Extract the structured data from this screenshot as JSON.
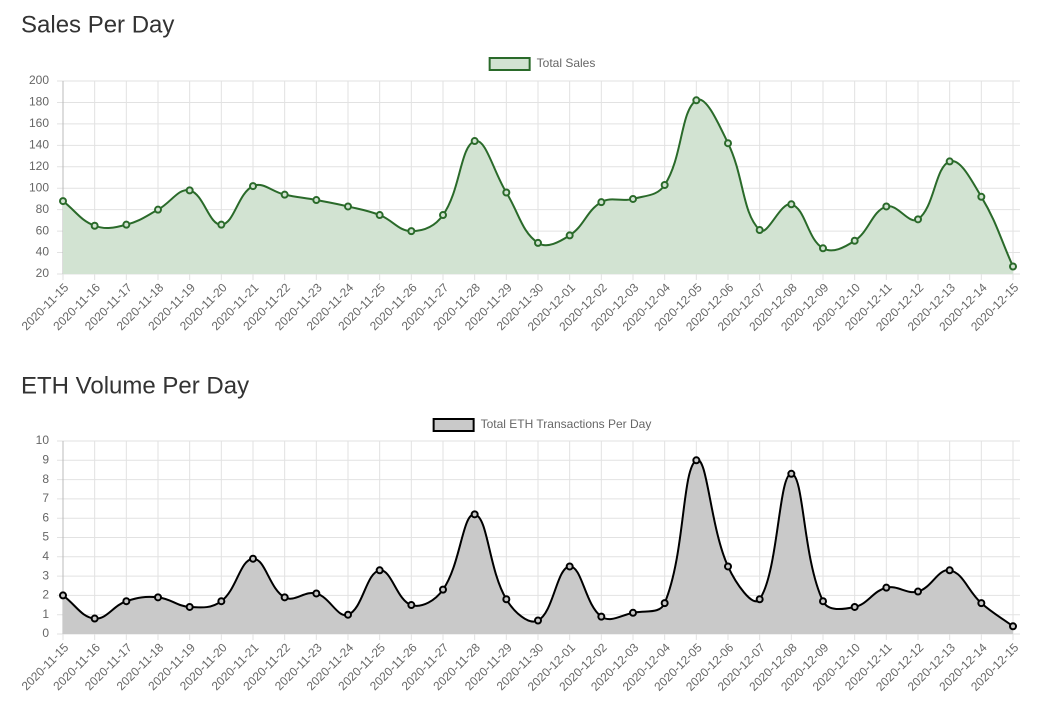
{
  "chart_data": [
    {
      "type": "line",
      "title": "Sales Per Day",
      "categories": [
        "2020-11-15",
        "2020-11-16",
        "2020-11-17",
        "2020-11-18",
        "2020-11-19",
        "2020-11-20",
        "2020-11-21",
        "2020-11-22",
        "2020-11-23",
        "2020-11-24",
        "2020-11-25",
        "2020-11-26",
        "2020-11-27",
        "2020-11-28",
        "2020-11-29",
        "2020-11-30",
        "2020-12-01",
        "2020-12-02",
        "2020-12-03",
        "2020-12-04",
        "2020-12-05",
        "2020-12-06",
        "2020-12-07",
        "2020-12-08",
        "2020-12-09",
        "2020-12-10",
        "2020-12-11",
        "2020-12-12",
        "2020-12-13",
        "2020-12-14",
        "2020-12-15"
      ],
      "series": [
        {
          "name": "Total Sales",
          "color": "#2a6a2a",
          "fill": "#d2e3d2",
          "values": [
            88,
            65,
            66,
            80,
            98,
            66,
            102,
            94,
            89,
            83,
            75,
            60,
            75,
            144,
            96,
            49,
            56,
            87,
            90,
            103,
            182,
            142,
            61,
            85,
            44,
            51,
            83,
            71,
            125,
            92,
            27
          ]
        }
      ],
      "ylim": [
        20,
        200
      ],
      "yticks": [
        20,
        40,
        60,
        80,
        100,
        120,
        140,
        160,
        180,
        200
      ],
      "grid": true
    },
    {
      "type": "line",
      "title": "ETH Volume Per Day",
      "categories": [
        "2020-11-15",
        "2020-11-16",
        "2020-11-17",
        "2020-11-18",
        "2020-11-19",
        "2020-11-20",
        "2020-11-21",
        "2020-11-22",
        "2020-11-23",
        "2020-11-24",
        "2020-11-25",
        "2020-11-26",
        "2020-11-27",
        "2020-11-28",
        "2020-11-29",
        "2020-11-30",
        "2020-12-01",
        "2020-12-02",
        "2020-12-03",
        "2020-12-04",
        "2020-12-05",
        "2020-12-06",
        "2020-12-07",
        "2020-12-08",
        "2020-12-09",
        "2020-12-10",
        "2020-12-11",
        "2020-12-12",
        "2020-12-13",
        "2020-12-14",
        "2020-12-15"
      ],
      "series": [
        {
          "name": "Total ETH Transactions Per Day",
          "color": "#000000",
          "fill": "#c9c9c9",
          "values": [
            2,
            0.8,
            1.7,
            1.9,
            1.4,
            1.7,
            3.9,
            1.9,
            2.1,
            1,
            3.3,
            1.5,
            2.3,
            6.2,
            1.8,
            0.7,
            3.5,
            0.9,
            1.1,
            1.6,
            9,
            3.5,
            1.8,
            8.3,
            1.7,
            1.4,
            2.4,
            2.2,
            3.3,
            1.6,
            0.4
          ]
        }
      ],
      "ylim": [
        0,
        10
      ],
      "yticks": [
        0,
        1,
        2,
        3,
        4,
        5,
        6,
        7,
        8,
        9,
        10
      ],
      "grid": true
    }
  ]
}
